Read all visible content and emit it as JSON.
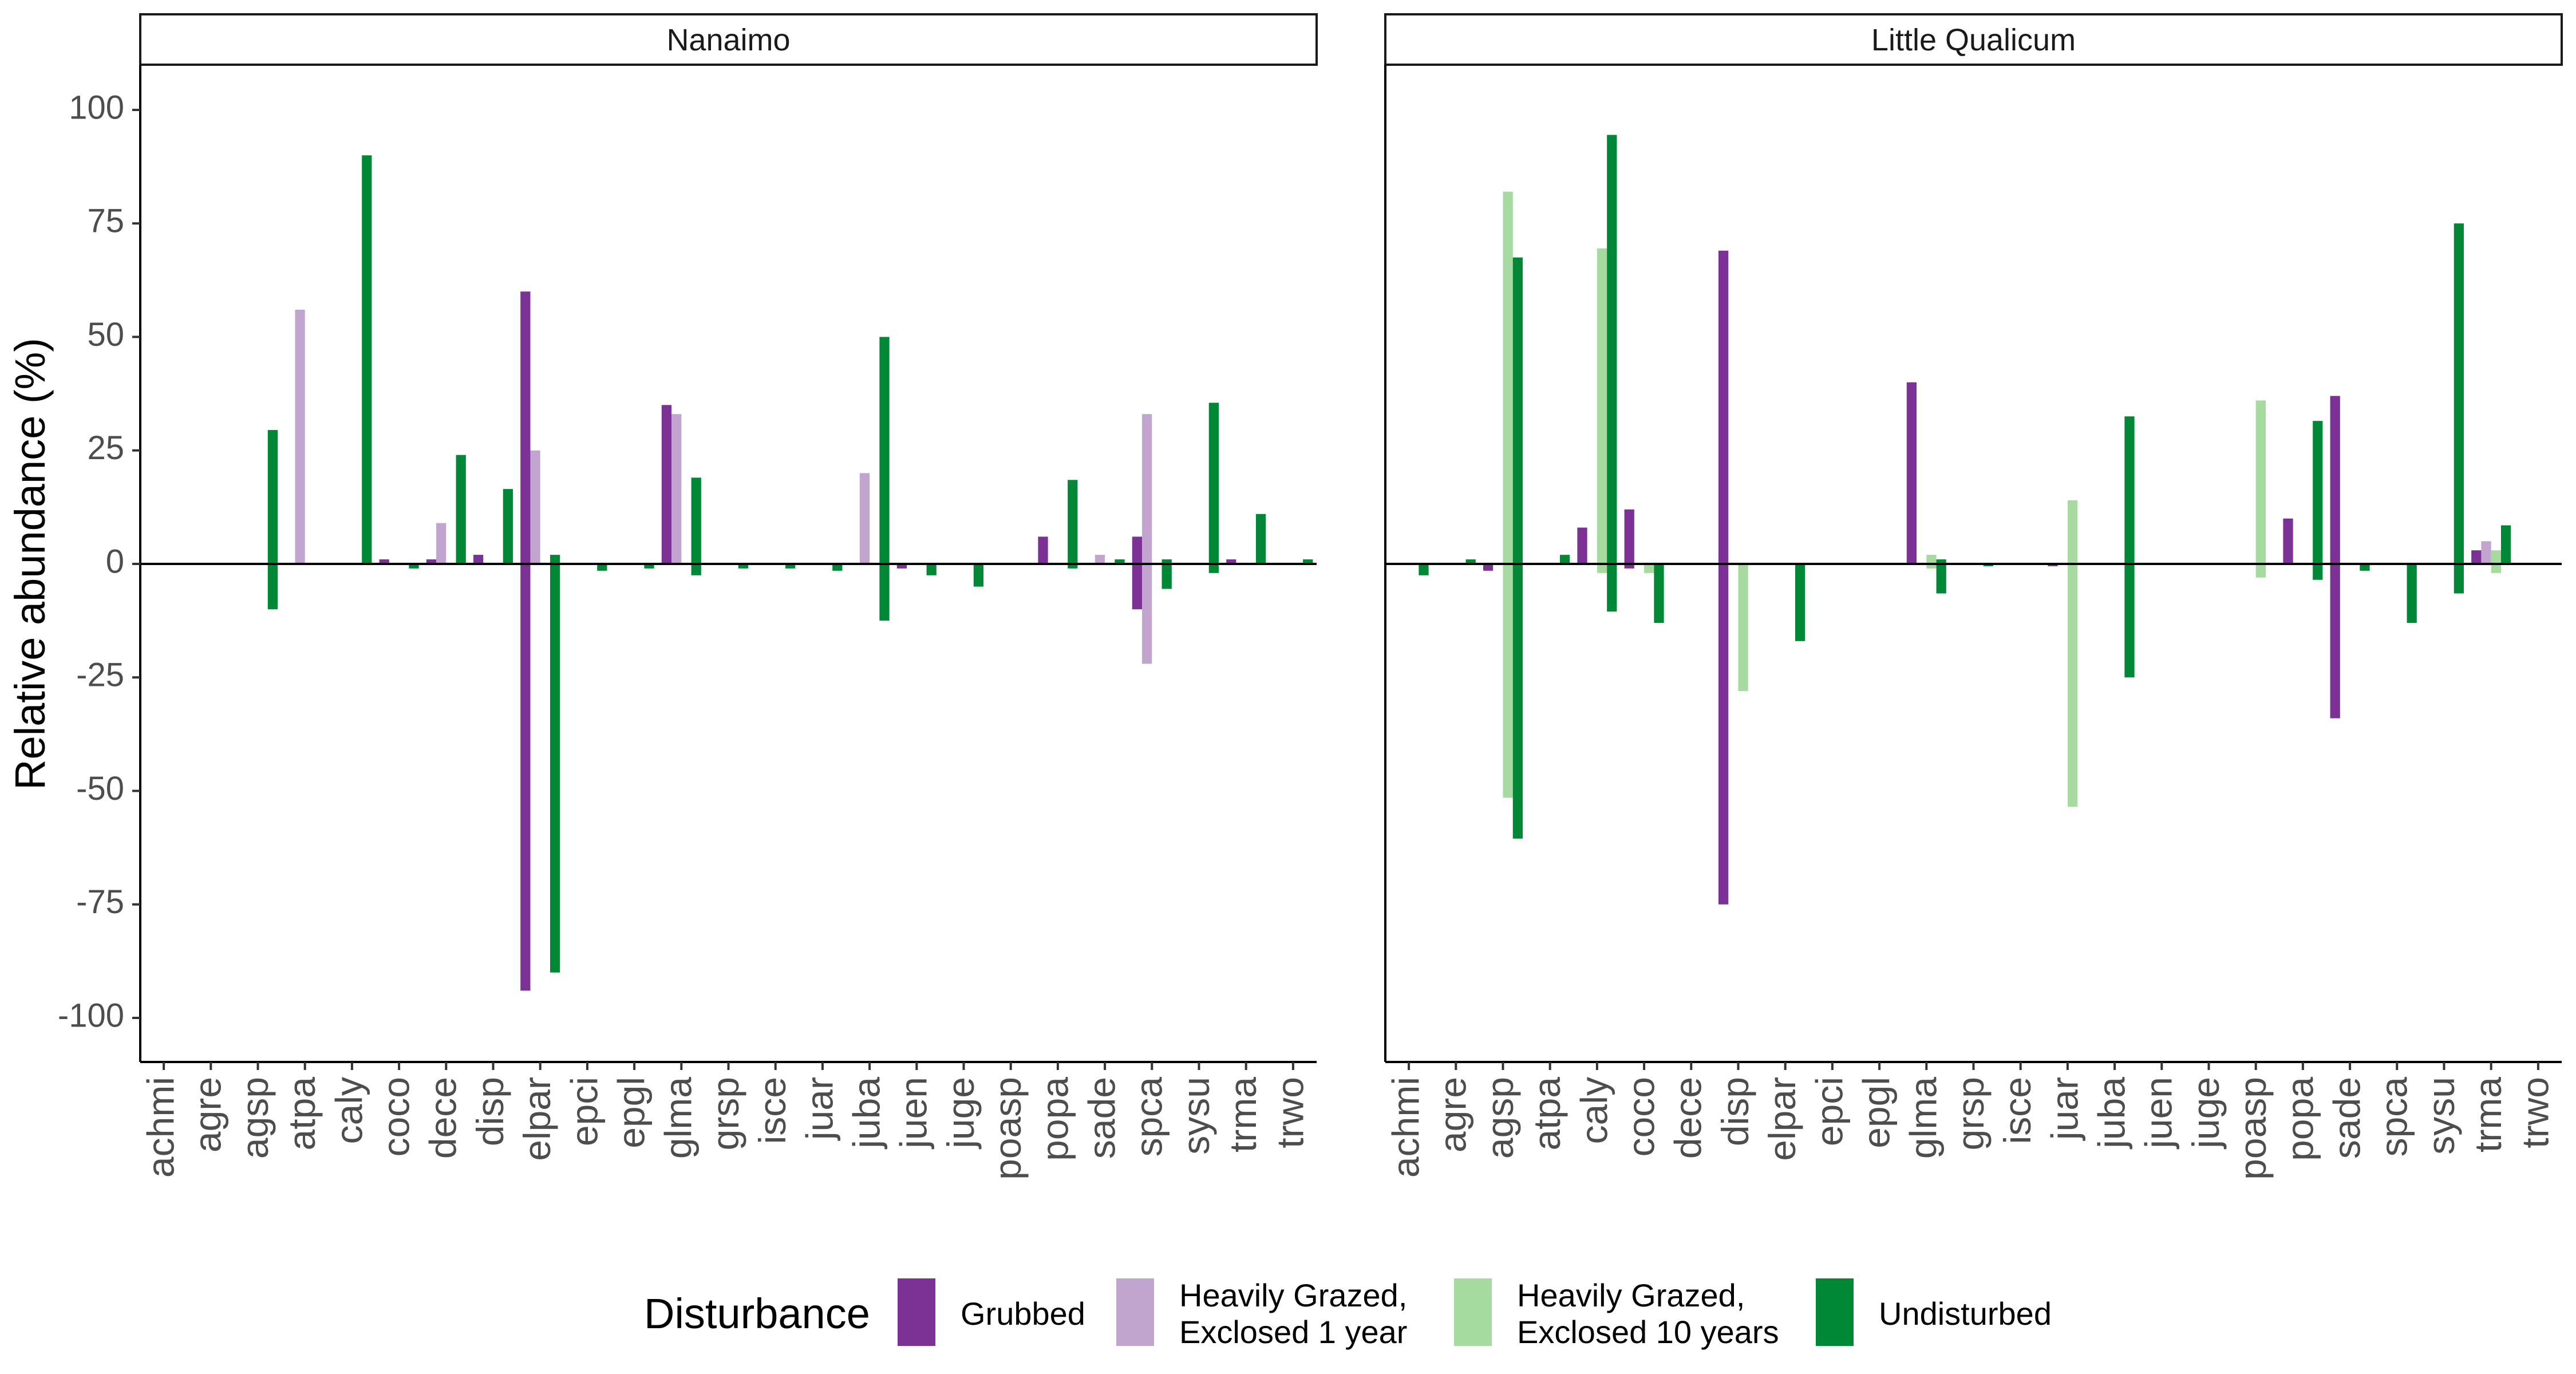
{
  "chart_data": {
    "type": "bar",
    "ylabel": "Relative abundance (%)",
    "ylim": [
      -110,
      110
    ],
    "yticks": [
      100,
      75,
      50,
      25,
      0,
      -25,
      -50,
      -75,
      -100
    ],
    "categories": [
      "achmi",
      "agre",
      "agsp",
      "atpa",
      "caly",
      "coco",
      "dece",
      "disp",
      "elpar",
      "epci",
      "epgl",
      "glma",
      "grsp",
      "isce",
      "juar",
      "juba",
      "juen",
      "juge",
      "poasp",
      "popa",
      "sade",
      "spca",
      "sysu",
      "trma",
      "trwo"
    ],
    "legend": {
      "title": "Disturbance",
      "placement": "bottom",
      "entries": [
        {
          "label_line1": "Grubbed",
          "label_line2": "",
          "color": "#7b3294"
        },
        {
          "label_line1": "Heavily Grazed,",
          "label_line2": "Exclosed 1 year",
          "color": "#c2a5cf"
        },
        {
          "label_line1": "Heavily Grazed,",
          "label_line2": "Exclosed 10 years",
          "color": "#a6dba0"
        },
        {
          "label_line1": "Undisturbed",
          "label_line2": "",
          "color": "#008837"
        }
      ]
    },
    "panels": [
      {
        "title": "Nanaimo",
        "series": [
          {
            "name": "Grubbed",
            "pos": [
              0,
              0,
              0,
              0,
              0,
              1,
              1,
              2,
              60,
              0,
              0,
              35,
              0,
              0,
              0,
              0,
              0,
              0,
              0,
              6,
              0,
              6,
              0,
              1,
              0
            ],
            "neg": [
              0,
              0,
              0,
              0,
              0,
              0,
              0,
              0,
              -94,
              0,
              0,
              0,
              0,
              0,
              0,
              0,
              -1,
              0,
              0,
              0,
              0,
              -10,
              0,
              0,
              0
            ]
          },
          {
            "name": "Heavily Grazed, Exclosed 1 year",
            "pos": [
              0,
              0,
              0,
              56,
              0,
              0,
              9,
              0,
              25,
              0,
              0,
              33,
              0,
              0,
              0,
              20,
              0,
              0,
              0,
              0,
              2,
              33,
              0,
              0,
              0
            ],
            "neg": [
              0,
              0,
              0,
              0,
              0,
              0,
              0,
              0,
              0,
              0,
              0,
              0,
              0,
              0,
              0,
              0,
              0,
              0,
              0,
              0,
              0,
              -22,
              0,
              0,
              0
            ]
          },
          {
            "name": "Heavily Grazed, Exclosed 10 years",
            "pos": [
              0,
              0,
              0,
              0,
              0,
              0,
              0,
              0,
              0,
              0,
              0,
              0,
              0,
              0,
              0,
              0,
              0,
              0,
              0,
              0,
              0,
              0,
              0,
              0,
              0
            ],
            "neg": [
              0,
              0,
              0,
              0,
              0,
              0,
              0,
              0,
              0,
              0,
              0,
              0,
              0,
              0,
              0,
              0,
              0,
              0,
              0,
              0,
              0,
              0,
              0,
              0,
              0
            ]
          },
          {
            "name": "Undisturbed",
            "pos": [
              0,
              0,
              29.5,
              0,
              90,
              0,
              24,
              16.5,
              2,
              0,
              0,
              19,
              0,
              0,
              0,
              50,
              0,
              0,
              0,
              18.5,
              1,
              1,
              35.5,
              11,
              1
            ],
            "neg": [
              0,
              0,
              -10,
              0,
              0,
              -1,
              0,
              0,
              -90,
              -1.5,
              -1,
              -2.5,
              -1,
              -1,
              -1.5,
              -12.5,
              -2.5,
              -5,
              0,
              -1,
              0,
              -5.5,
              -2,
              0,
              0
            ]
          }
        ]
      },
      {
        "title": "Little Qualicum",
        "series": [
          {
            "name": "Grubbed",
            "pos": [
              0,
              0,
              0,
              0,
              8,
              12,
              0,
              69,
              0,
              0,
              0,
              40,
              0,
              0,
              0,
              0,
              0,
              0,
              0,
              10,
              37,
              0,
              0,
              3,
              0
            ],
            "neg": [
              0,
              0,
              -1.5,
              0,
              0,
              -1,
              0,
              -75,
              0,
              0,
              0,
              0,
              0,
              0,
              -0.5,
              0,
              0,
              0,
              0,
              0,
              -34,
              0,
              0,
              0,
              0
            ]
          },
          {
            "name": "Heavily Grazed, Exclosed 1 year",
            "pos": [
              0,
              0,
              0,
              0,
              0,
              0,
              0,
              0,
              0,
              0,
              0,
              0,
              0,
              0,
              0,
              0,
              0,
              0,
              0,
              0,
              0,
              0,
              0,
              5,
              0
            ],
            "neg": [
              0,
              0,
              0,
              0,
              0,
              0,
              0,
              0,
              0,
              0,
              0,
              0,
              0,
              0,
              0,
              0,
              0,
              0,
              0,
              0,
              0,
              0,
              0,
              0,
              0
            ]
          },
          {
            "name": "Heavily Grazed, Exclosed 10 years",
            "pos": [
              0,
              0,
              82,
              0,
              69.5,
              0,
              0,
              0,
              0,
              0,
              0,
              2,
              0,
              0,
              14,
              0,
              0,
              0,
              36,
              0,
              0,
              0,
              0,
              3,
              0
            ],
            "neg": [
              0,
              0,
              -51.5,
              0,
              -2,
              -2,
              0,
              -28,
              0,
              0,
              0,
              -1,
              0,
              0,
              -53.5,
              0,
              0,
              0,
              -3,
              0,
              0,
              0,
              0,
              -2,
              0
            ]
          },
          {
            "name": "Undisturbed",
            "pos": [
              0,
              1,
              67.5,
              2,
              94.5,
              0,
              0,
              0,
              0,
              0,
              0,
              1,
              0,
              0,
              0,
              32.5,
              0,
              0,
              0,
              31.5,
              0,
              0,
              75,
              8.5,
              0
            ],
            "neg": [
              -2.5,
              0,
              -60.5,
              0,
              -10.5,
              -13,
              0,
              0,
              -17,
              0,
              0,
              -6.5,
              -0.5,
              0,
              0,
              -25,
              0,
              0,
              0,
              -3.5,
              -1.5,
              -13,
              -6.5,
              0,
              0
            ]
          }
        ]
      }
    ]
  }
}
